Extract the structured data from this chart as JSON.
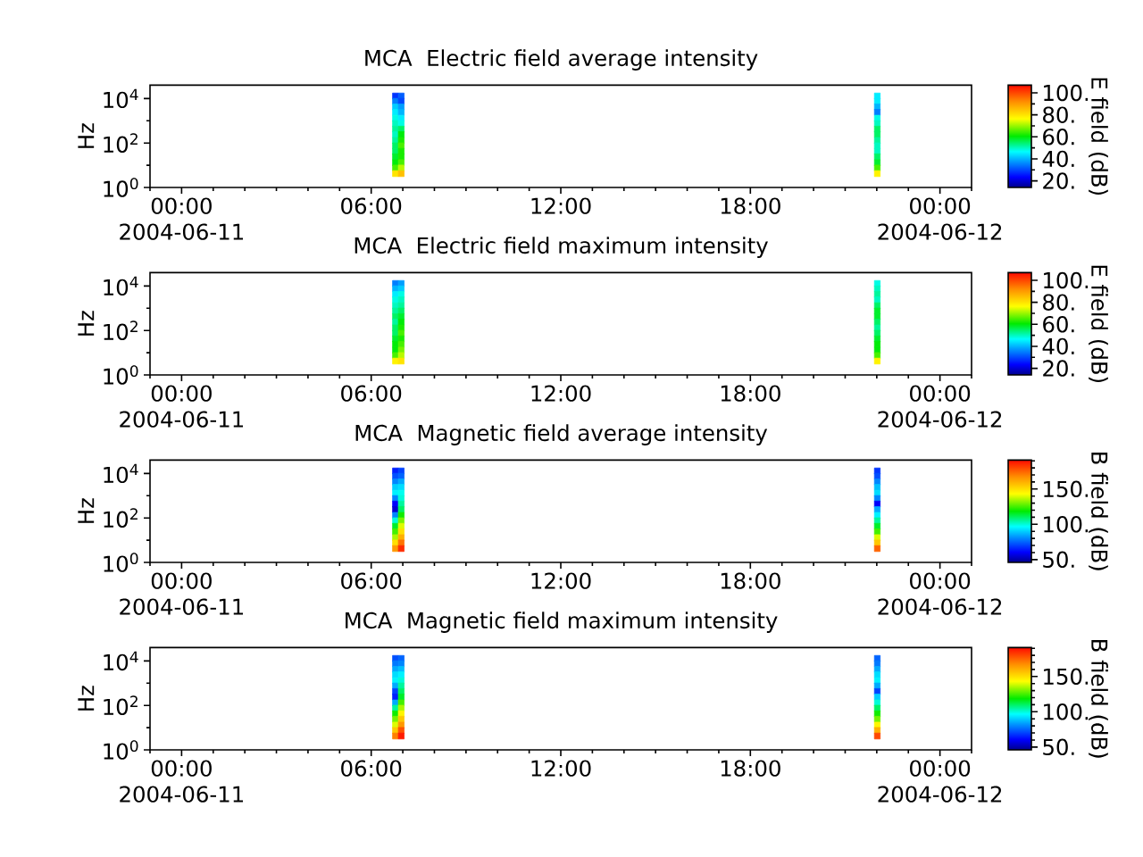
{
  "chart_data": [
    {
      "type": "scatter",
      "title": "MCA  Electric field average intensity",
      "ylabel": "Hz",
      "clabel": "E field (dB)",
      "marker": "square",
      "log": "y",
      "x": [
        "2004-06-11T06:46",
        "2004-06-11T06:46",
        "2004-06-11T06:46",
        "2004-06-11T06:46",
        "2004-06-11T06:46",
        "2004-06-11T06:46",
        "2004-06-11T06:46",
        "2004-06-11T06:46",
        "2004-06-11T06:46",
        "2004-06-11T06:46",
        "2004-06-11T06:46",
        "2004-06-11T06:46",
        "2004-06-11T06:46",
        "2004-06-11T06:46",
        "2004-06-11T06:46",
        "2004-06-11T06:57",
        "2004-06-11T06:57",
        "2004-06-11T06:57",
        "2004-06-11T06:57",
        "2004-06-11T06:57",
        "2004-06-11T06:57",
        "2004-06-11T06:57",
        "2004-06-11T06:57",
        "2004-06-11T06:57",
        "2004-06-11T06:57",
        "2004-06-11T06:57",
        "2004-06-11T06:57",
        "2004-06-11T06:57",
        "2004-06-11T06:57",
        "2004-06-11T06:57",
        "2004-06-11T22:01",
        "2004-06-11T22:01",
        "2004-06-11T22:01",
        "2004-06-11T22:01",
        "2004-06-11T22:01",
        "2004-06-11T22:01",
        "2004-06-11T22:01",
        "2004-06-11T22:01",
        "2004-06-11T22:01",
        "2004-06-11T22:01",
        "2004-06-11T22:01",
        "2004-06-11T22:01",
        "2004-06-11T22:01",
        "2004-06-11T22:01",
        "2004-06-11T22:01"
      ],
      "values": [
        13000,
        7500,
        4200,
        2400,
        1300,
        750,
        420,
        240,
        130,
        75,
        42,
        24,
        13,
        7.5,
        4.2,
        13000,
        7500,
        4200,
        2400,
        1300,
        750,
        420,
        240,
        130,
        75,
        42,
        24,
        13,
        7.5,
        4.2,
        13000,
        7500,
        4200,
        2400,
        1300,
        750,
        420,
        240,
        130,
        75,
        42,
        24,
        13,
        7.5,
        4.2
      ],
      "cvalues": [
        28,
        35,
        42,
        45,
        48,
        50,
        52,
        50,
        52,
        55,
        55,
        58,
        60,
        65,
        80,
        32,
        30,
        38,
        40,
        45,
        48,
        55,
        60,
        62,
        65,
        62,
        62,
        65,
        72,
        85,
        45,
        45,
        40,
        35,
        48,
        50,
        55,
        55,
        52,
        50,
        50,
        55,
        58,
        65,
        78
      ],
      "xlim": [
        "2004-06-10T23:00",
        "2004-06-12T01:00"
      ],
      "xticks": [
        {
          "value": "2004-06-10T23:00",
          "label": null
        },
        {
          "value": "2004-06-11T00:00",
          "label": "00:00\n2004-06-11"
        },
        {
          "value": "2004-06-11T01:00",
          "label": null
        },
        {
          "value": "2004-06-11T02:00",
          "label": null
        },
        {
          "value": "2004-06-11T03:00",
          "label": null
        },
        {
          "value": "2004-06-11T04:00",
          "label": null
        },
        {
          "value": "2004-06-11T05:00",
          "label": null
        },
        {
          "value": "2004-06-11T06:00",
          "label": "06:00"
        },
        {
          "value": "2004-06-11T07:00",
          "label": null
        },
        {
          "value": "2004-06-11T08:00",
          "label": null
        },
        {
          "value": "2004-06-11T09:00",
          "label": null
        },
        {
          "value": "2004-06-11T10:00",
          "label": null
        },
        {
          "value": "2004-06-11T11:00",
          "label": null
        },
        {
          "value": "2004-06-11T12:00",
          "label": "12:00"
        },
        {
          "value": "2004-06-11T13:00",
          "label": null
        },
        {
          "value": "2004-06-11T14:00",
          "label": null
        },
        {
          "value": "2004-06-11T15:00",
          "label": null
        },
        {
          "value": "2004-06-11T16:00",
          "label": null
        },
        {
          "value": "2004-06-11T17:00",
          "label": null
        },
        {
          "value": "2004-06-11T18:00",
          "label": "18:00"
        },
        {
          "value": "2004-06-11T19:00",
          "label": null
        },
        {
          "value": "2004-06-11T20:00",
          "label": null
        },
        {
          "value": "2004-06-11T21:00",
          "label": null
        },
        {
          "value": "2004-06-11T22:00",
          "label": null
        },
        {
          "value": "2004-06-11T23:00",
          "label": null
        },
        {
          "value": "2004-06-12T00:00",
          "label": "00:00\n2004-06-12"
        },
        {
          "value": "2004-06-12T01:00",
          "label": null
        }
      ],
      "ylim": [
        1,
        40000
      ],
      "yticks": [
        {
          "value": 1,
          "label": "10$^{0}$"
        },
        {
          "value": 10,
          "label": null
        },
        {
          "value": 100,
          "label": "10$^{2}$"
        },
        {
          "value": 1000,
          "label": null
        },
        {
          "value": 10000,
          "label": "10$^{4}$"
        }
      ],
      "clim": [
        14,
        107
      ],
      "cticks": [
        {
          "value": 20,
          "label": "20."
        },
        {
          "value": 30,
          "label": null
        },
        {
          "value": 40,
          "label": "40."
        },
        {
          "value": 50,
          "label": null
        },
        {
          "value": 60,
          "label": "60."
        },
        {
          "value": 70,
          "label": null
        },
        {
          "value": 80,
          "label": "80."
        },
        {
          "value": 90,
          "label": null
        },
        {
          "value": 100,
          "label": "100."
        }
      ]
    },
    {
      "type": "scatter",
      "title": "MCA  Electric field maximum intensity",
      "ylabel": "Hz",
      "clabel": "E field (dB)",
      "marker": "square",
      "log": "y",
      "x": [
        "2004-06-11T06:46",
        "2004-06-11T06:46",
        "2004-06-11T06:46",
        "2004-06-11T06:46",
        "2004-06-11T06:46",
        "2004-06-11T06:46",
        "2004-06-11T06:46",
        "2004-06-11T06:46",
        "2004-06-11T06:46",
        "2004-06-11T06:46",
        "2004-06-11T06:46",
        "2004-06-11T06:46",
        "2004-06-11T06:46",
        "2004-06-11T06:46",
        "2004-06-11T06:46",
        "2004-06-11T06:57",
        "2004-06-11T06:57",
        "2004-06-11T06:57",
        "2004-06-11T06:57",
        "2004-06-11T06:57",
        "2004-06-11T06:57",
        "2004-06-11T06:57",
        "2004-06-11T06:57",
        "2004-06-11T06:57",
        "2004-06-11T06:57",
        "2004-06-11T06:57",
        "2004-06-11T06:57",
        "2004-06-11T06:57",
        "2004-06-11T06:57",
        "2004-06-11T06:57",
        "2004-06-11T22:01",
        "2004-06-11T22:01",
        "2004-06-11T22:01",
        "2004-06-11T22:01",
        "2004-06-11T22:01",
        "2004-06-11T22:01",
        "2004-06-11T22:01",
        "2004-06-11T22:01",
        "2004-06-11T22:01",
        "2004-06-11T22:01",
        "2004-06-11T22:01",
        "2004-06-11T22:01",
        "2004-06-11T22:01",
        "2004-06-11T22:01",
        "2004-06-11T22:01"
      ],
      "values": [
        13000,
        7500,
        4200,
        2400,
        1300,
        750,
        420,
        240,
        130,
        75,
        42,
        24,
        13,
        7.5,
        4.2,
        13000,
        7500,
        4200,
        2400,
        1300,
        750,
        420,
        240,
        130,
        75,
        42,
        24,
        13,
        7.5,
        4.2,
        13000,
        7500,
        4200,
        2400,
        1300,
        750,
        420,
        240,
        130,
        75,
        42,
        24,
        13,
        7.5,
        4.2
      ],
      "cvalues": [
        35,
        40,
        45,
        48,
        50,
        52,
        55,
        52,
        55,
        55,
        58,
        60,
        60,
        65,
        78,
        38,
        42,
        48,
        50,
        52,
        55,
        58,
        60,
        62,
        65,
        62,
        65,
        68,
        72,
        80,
        48,
        50,
        52,
        50,
        55,
        58,
        58,
        55,
        52,
        55,
        58,
        60,
        60,
        65,
        78
      ],
      "xlim": [
        "2004-06-10T23:00",
        "2004-06-12T01:00"
      ],
      "xticks": [
        {
          "value": "2004-06-10T23:00",
          "label": null
        },
        {
          "value": "2004-06-11T00:00",
          "label": "00:00\n2004-06-11"
        },
        {
          "value": "2004-06-11T01:00",
          "label": null
        },
        {
          "value": "2004-06-11T02:00",
          "label": null
        },
        {
          "value": "2004-06-11T03:00",
          "label": null
        },
        {
          "value": "2004-06-11T04:00",
          "label": null
        },
        {
          "value": "2004-06-11T05:00",
          "label": null
        },
        {
          "value": "2004-06-11T06:00",
          "label": "06:00"
        },
        {
          "value": "2004-06-11T07:00",
          "label": null
        },
        {
          "value": "2004-06-11T08:00",
          "label": null
        },
        {
          "value": "2004-06-11T09:00",
          "label": null
        },
        {
          "value": "2004-06-11T10:00",
          "label": null
        },
        {
          "value": "2004-06-11T11:00",
          "label": null
        },
        {
          "value": "2004-06-11T12:00",
          "label": "12:00"
        },
        {
          "value": "2004-06-11T13:00",
          "label": null
        },
        {
          "value": "2004-06-11T14:00",
          "label": null
        },
        {
          "value": "2004-06-11T15:00",
          "label": null
        },
        {
          "value": "2004-06-11T16:00",
          "label": null
        },
        {
          "value": "2004-06-11T17:00",
          "label": null
        },
        {
          "value": "2004-06-11T18:00",
          "label": "18:00"
        },
        {
          "value": "2004-06-11T19:00",
          "label": null
        },
        {
          "value": "2004-06-11T20:00",
          "label": null
        },
        {
          "value": "2004-06-11T21:00",
          "label": null
        },
        {
          "value": "2004-06-11T22:00",
          "label": null
        },
        {
          "value": "2004-06-11T23:00",
          "label": null
        },
        {
          "value": "2004-06-12T00:00",
          "label": "00:00\n2004-06-12"
        },
        {
          "value": "2004-06-12T01:00",
          "label": null
        }
      ],
      "ylim": [
        1,
        40000
      ],
      "yticks": [
        {
          "value": 1,
          "label": "10$^{0}$"
        },
        {
          "value": 10,
          "label": null
        },
        {
          "value": 100,
          "label": "10$^{2}$"
        },
        {
          "value": 1000,
          "label": null
        },
        {
          "value": 10000,
          "label": "10$^{4}$"
        }
      ],
      "clim": [
        14,
        107
      ],
      "cticks": [
        {
          "value": 20,
          "label": "20."
        },
        {
          "value": 30,
          "label": null
        },
        {
          "value": 40,
          "label": "40."
        },
        {
          "value": 50,
          "label": null
        },
        {
          "value": 60,
          "label": "60."
        },
        {
          "value": 70,
          "label": null
        },
        {
          "value": 80,
          "label": "80."
        },
        {
          "value": 90,
          "label": null
        },
        {
          "value": 100,
          "label": "100."
        }
      ]
    },
    {
      "type": "scatter",
      "title": "MCA  Magnetic field average intensity",
      "ylabel": "Hz",
      "clabel": "B field (dB)",
      "marker": "square",
      "log": "y",
      "x": [
        "2004-06-11T06:46",
        "2004-06-11T06:46",
        "2004-06-11T06:46",
        "2004-06-11T06:46",
        "2004-06-11T06:46",
        "2004-06-11T06:46",
        "2004-06-11T06:46",
        "2004-06-11T06:46",
        "2004-06-11T06:46",
        "2004-06-11T06:46",
        "2004-06-11T06:46",
        "2004-06-11T06:46",
        "2004-06-11T06:46",
        "2004-06-11T06:46",
        "2004-06-11T06:46",
        "2004-06-11T06:57",
        "2004-06-11T06:57",
        "2004-06-11T06:57",
        "2004-06-11T06:57",
        "2004-06-11T06:57",
        "2004-06-11T06:57",
        "2004-06-11T06:57",
        "2004-06-11T06:57",
        "2004-06-11T06:57",
        "2004-06-11T06:57",
        "2004-06-11T06:57",
        "2004-06-11T06:57",
        "2004-06-11T06:57",
        "2004-06-11T06:57",
        "2004-06-11T06:57",
        "2004-06-11T22:01",
        "2004-06-11T22:01",
        "2004-06-11T22:01",
        "2004-06-11T22:01",
        "2004-06-11T22:01",
        "2004-06-11T22:01",
        "2004-06-11T22:01",
        "2004-06-11T22:01",
        "2004-06-11T22:01",
        "2004-06-11T22:01",
        "2004-06-11T22:01",
        "2004-06-11T22:01",
        "2004-06-11T22:01",
        "2004-06-11T22:01",
        "2004-06-11T22:01"
      ],
      "values": [
        13000,
        7500,
        4200,
        2400,
        1300,
        750,
        420,
        240,
        130,
        75,
        42,
        24,
        13,
        7.5,
        4.2,
        13000,
        7500,
        4200,
        2400,
        1300,
        750,
        420,
        240,
        130,
        75,
        42,
        24,
        13,
        7.5,
        4.2,
        13000,
        7500,
        4200,
        2400,
        1300,
        750,
        420,
        240,
        130,
        75,
        42,
        24,
        13,
        7.5,
        4.2
      ],
      "cvalues": [
        65,
        72,
        80,
        90,
        95,
        80,
        60,
        55,
        80,
        100,
        115,
        125,
        135,
        150,
        165,
        70,
        75,
        85,
        92,
        98,
        100,
        105,
        110,
        120,
        130,
        140,
        150,
        160,
        172,
        185,
        68,
        72,
        80,
        88,
        92,
        80,
        60,
        85,
        95,
        105,
        115,
        125,
        140,
        155,
        175
      ],
      "xlim": [
        "2004-06-10T23:00",
        "2004-06-12T01:00"
      ],
      "xticks": [
        {
          "value": "2004-06-10T23:00",
          "label": null
        },
        {
          "value": "2004-06-11T00:00",
          "label": "00:00\n2004-06-11"
        },
        {
          "value": "2004-06-11T01:00",
          "label": null
        },
        {
          "value": "2004-06-11T02:00",
          "label": null
        },
        {
          "value": "2004-06-11T03:00",
          "label": null
        },
        {
          "value": "2004-06-11T04:00",
          "label": null
        },
        {
          "value": "2004-06-11T05:00",
          "label": null
        },
        {
          "value": "2004-06-11T06:00",
          "label": "06:00"
        },
        {
          "value": "2004-06-11T07:00",
          "label": null
        },
        {
          "value": "2004-06-11T08:00",
          "label": null
        },
        {
          "value": "2004-06-11T09:00",
          "label": null
        },
        {
          "value": "2004-06-11T10:00",
          "label": null
        },
        {
          "value": "2004-06-11T11:00",
          "label": null
        },
        {
          "value": "2004-06-11T12:00",
          "label": "12:00"
        },
        {
          "value": "2004-06-11T13:00",
          "label": null
        },
        {
          "value": "2004-06-11T14:00",
          "label": null
        },
        {
          "value": "2004-06-11T15:00",
          "label": null
        },
        {
          "value": "2004-06-11T16:00",
          "label": null
        },
        {
          "value": "2004-06-11T17:00",
          "label": null
        },
        {
          "value": "2004-06-11T18:00",
          "label": "18:00"
        },
        {
          "value": "2004-06-11T19:00",
          "label": null
        },
        {
          "value": "2004-06-11T20:00",
          "label": null
        },
        {
          "value": "2004-06-11T21:00",
          "label": null
        },
        {
          "value": "2004-06-11T22:00",
          "label": null
        },
        {
          "value": "2004-06-11T23:00",
          "label": null
        },
        {
          "value": "2004-06-12T00:00",
          "label": "00:00\n2004-06-12"
        },
        {
          "value": "2004-06-12T01:00",
          "label": null
        }
      ],
      "ylim": [
        1,
        40000
      ],
      "yticks": [
        {
          "value": 1,
          "label": "10$^{0}$"
        },
        {
          "value": 10,
          "label": null
        },
        {
          "value": 100,
          "label": "10$^{2}$"
        },
        {
          "value": 1000,
          "label": null
        },
        {
          "value": 10000,
          "label": "10$^{4}$"
        }
      ],
      "clim": [
        46,
        191
      ],
      "cticks": [
        {
          "value": 50,
          "label": "50."
        },
        {
          "value": 60,
          "label": null
        },
        {
          "value": 70,
          "label": null
        },
        {
          "value": 80,
          "label": null
        },
        {
          "value": 90,
          "label": null
        },
        {
          "value": 100,
          "label": "100."
        },
        {
          "value": 110,
          "label": null
        },
        {
          "value": 120,
          "label": null
        },
        {
          "value": 130,
          "label": null
        },
        {
          "value": 140,
          "label": null
        },
        {
          "value": 150,
          "label": "150."
        },
        {
          "value": 160,
          "label": null
        },
        {
          "value": 170,
          "label": null
        },
        {
          "value": 180,
          "label": null
        },
        {
          "value": 190,
          "label": null
        }
      ]
    },
    {
      "type": "scatter",
      "title": "MCA  Magnetic field maximum intensity",
      "ylabel": "Hz",
      "clabel": "B field (dB)",
      "marker": "square",
      "log": "y",
      "x": [
        "2004-06-11T06:46",
        "2004-06-11T06:46",
        "2004-06-11T06:46",
        "2004-06-11T06:46",
        "2004-06-11T06:46",
        "2004-06-11T06:46",
        "2004-06-11T06:46",
        "2004-06-11T06:46",
        "2004-06-11T06:46",
        "2004-06-11T06:46",
        "2004-06-11T06:46",
        "2004-06-11T06:46",
        "2004-06-11T06:46",
        "2004-06-11T06:46",
        "2004-06-11T06:46",
        "2004-06-11T06:57",
        "2004-06-11T06:57",
        "2004-06-11T06:57",
        "2004-06-11T06:57",
        "2004-06-11T06:57",
        "2004-06-11T06:57",
        "2004-06-11T06:57",
        "2004-06-11T06:57",
        "2004-06-11T06:57",
        "2004-06-11T06:57",
        "2004-06-11T06:57",
        "2004-06-11T06:57",
        "2004-06-11T06:57",
        "2004-06-11T06:57",
        "2004-06-11T06:57",
        "2004-06-11T22:01",
        "2004-06-11T22:01",
        "2004-06-11T22:01",
        "2004-06-11T22:01",
        "2004-06-11T22:01",
        "2004-06-11T22:01",
        "2004-06-11T22:01",
        "2004-06-11T22:01",
        "2004-06-11T22:01",
        "2004-06-11T22:01",
        "2004-06-11T22:01",
        "2004-06-11T22:01",
        "2004-06-11T22:01",
        "2004-06-11T22:01",
        "2004-06-11T22:01"
      ],
      "values": [
        13000,
        7500,
        4200,
        2400,
        1300,
        750,
        420,
        240,
        130,
        75,
        42,
        24,
        13,
        7.5,
        4.2,
        13000,
        7500,
        4200,
        2400,
        1300,
        750,
        420,
        240,
        130,
        75,
        42,
        24,
        13,
        7.5,
        4.2,
        13000,
        7500,
        4200,
        2400,
        1300,
        750,
        420,
        240,
        130,
        75,
        42,
        24,
        13,
        7.5,
        4.2
      ],
      "cvalues": [
        72,
        78,
        85,
        92,
        95,
        85,
        70,
        65,
        85,
        105,
        120,
        130,
        140,
        155,
        170,
        75,
        80,
        88,
        95,
        100,
        105,
        110,
        115,
        125,
        135,
        145,
        155,
        165,
        178,
        188,
        75,
        78,
        85,
        92,
        95,
        85,
        70,
        90,
        100,
        110,
        120,
        130,
        145,
        160,
        180
      ],
      "xlim": [
        "2004-06-10T23:00",
        "2004-06-12T01:00"
      ],
      "xticks": [
        {
          "value": "2004-06-10T23:00",
          "label": null
        },
        {
          "value": "2004-06-11T00:00",
          "label": "00:00\n2004-06-11"
        },
        {
          "value": "2004-06-11T01:00",
          "label": null
        },
        {
          "value": "2004-06-11T02:00",
          "label": null
        },
        {
          "value": "2004-06-11T03:00",
          "label": null
        },
        {
          "value": "2004-06-11T04:00",
          "label": null
        },
        {
          "value": "2004-06-11T05:00",
          "label": null
        },
        {
          "value": "2004-06-11T06:00",
          "label": "06:00"
        },
        {
          "value": "2004-06-11T07:00",
          "label": null
        },
        {
          "value": "2004-06-11T08:00",
          "label": null
        },
        {
          "value": "2004-06-11T09:00",
          "label": null
        },
        {
          "value": "2004-06-11T10:00",
          "label": null
        },
        {
          "value": "2004-06-11T11:00",
          "label": null
        },
        {
          "value": "2004-06-11T12:00",
          "label": "12:00"
        },
        {
          "value": "2004-06-11T13:00",
          "label": null
        },
        {
          "value": "2004-06-11T14:00",
          "label": null
        },
        {
          "value": "2004-06-11T15:00",
          "label": null
        },
        {
          "value": "2004-06-11T16:00",
          "label": null
        },
        {
          "value": "2004-06-11T17:00",
          "label": null
        },
        {
          "value": "2004-06-11T18:00",
          "label": "18:00"
        },
        {
          "value": "2004-06-11T19:00",
          "label": null
        },
        {
          "value": "2004-06-11T20:00",
          "label": null
        },
        {
          "value": "2004-06-11T21:00",
          "label": null
        },
        {
          "value": "2004-06-11T22:00",
          "label": null
        },
        {
          "value": "2004-06-11T23:00",
          "label": null
        },
        {
          "value": "2004-06-12T00:00",
          "label": "00:00\n2004-06-12"
        },
        {
          "value": "2004-06-12T01:00",
          "label": null
        }
      ],
      "ylim": [
        1,
        40000
      ],
      "yticks": [
        {
          "value": 1,
          "label": "10$^{0}$"
        },
        {
          "value": 10,
          "label": null
        },
        {
          "value": 100,
          "label": "10$^{2}$"
        },
        {
          "value": 1000,
          "label": null
        },
        {
          "value": 10000,
          "label": "10$^{4}$"
        }
      ],
      "clim": [
        46,
        191
      ],
      "cticks": [
        {
          "value": 50,
          "label": "50."
        },
        {
          "value": 60,
          "label": null
        },
        {
          "value": 70,
          "label": null
        },
        {
          "value": 80,
          "label": null
        },
        {
          "value": 90,
          "label": null
        },
        {
          "value": 100,
          "label": "100."
        },
        {
          "value": 110,
          "label": null
        },
        {
          "value": 120,
          "label": null
        },
        {
          "value": 130,
          "label": null
        },
        {
          "value": 140,
          "label": null
        },
        {
          "value": 150,
          "label": "150."
        },
        {
          "value": 160,
          "label": null
        },
        {
          "value": 170,
          "label": null
        },
        {
          "value": 180,
          "label": null
        },
        {
          "value": 190,
          "label": null
        }
      ]
    }
  ]
}
